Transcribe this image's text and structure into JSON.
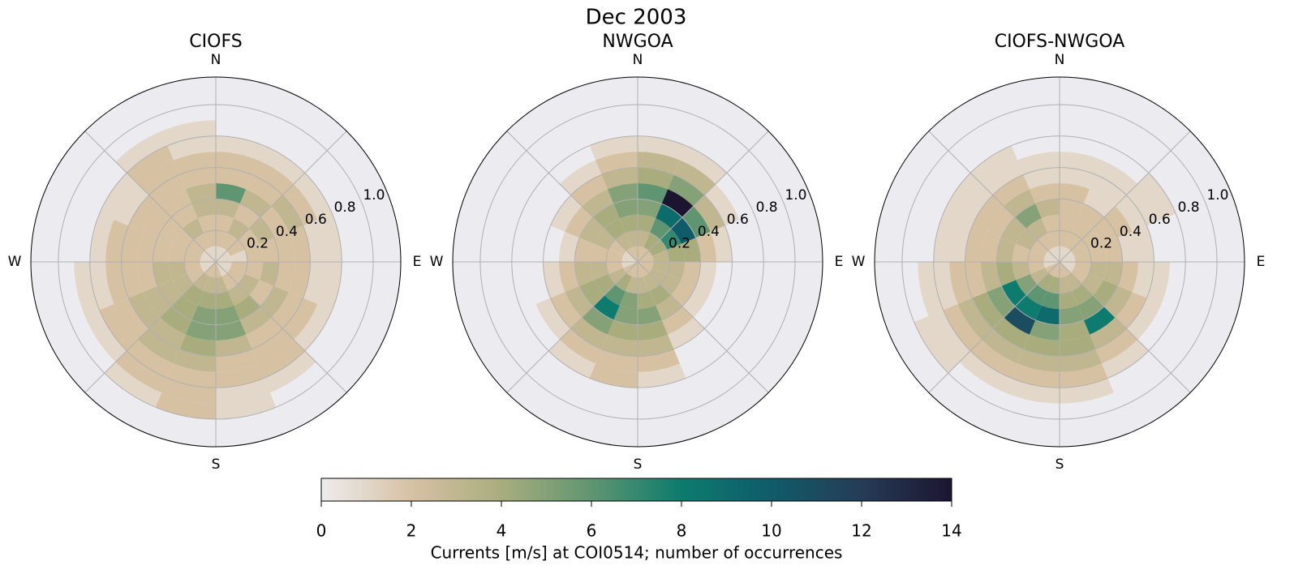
{
  "title": "Dec 2003",
  "polar": {
    "rlim": [
      0,
      1.175
    ],
    "rticks": [
      0.2,
      0.4,
      0.6,
      0.8,
      {
        "value": 1,
        "label": "1.0"
      }
    ],
    "r_bins": [
      0,
      0.1,
      0.2,
      0.3,
      0.4,
      0.5,
      0.6,
      0.7,
      0.8,
      0.9,
      1.0
    ],
    "theta_bins": [
      0,
      22.5,
      45,
      67.5,
      90,
      112.5,
      135,
      157.5,
      180,
      202.5,
      225,
      247.5,
      270,
      292.5,
      315,
      337.5,
      360
    ],
    "direction_labels": [
      "N",
      "E",
      "S",
      "W"
    ],
    "background": "#ebebf0",
    "grid": true
  },
  "chart_data": [
    {
      "type": "polar_hist2d",
      "title": "CIOFS",
      "counts": [
        [
          1,
          2,
          2,
          3,
          6,
          2,
          2,
          1,
          0,
          0
        ],
        [
          1,
          2,
          3,
          2,
          3,
          2,
          2,
          1,
          0,
          0
        ],
        [
          1,
          2,
          2,
          3,
          2,
          3,
          2,
          1,
          0,
          0
        ],
        [
          1,
          1,
          2,
          2,
          2,
          2,
          1,
          1,
          0,
          0
        ],
        [
          1,
          2,
          2,
          3,
          2,
          2,
          1,
          1,
          0,
          0
        ],
        [
          1,
          2,
          3,
          2,
          3,
          2,
          2,
          1,
          0,
          0
        ],
        [
          1,
          2,
          3,
          4,
          3,
          2,
          2,
          2,
          1,
          0
        ],
        [
          2,
          3,
          4,
          5,
          5,
          3,
          2,
          2,
          1,
          1
        ],
        [
          2,
          3,
          4,
          5,
          5,
          4,
          3,
          2,
          2,
          2
        ],
        [
          2,
          3,
          4,
          4,
          4,
          3,
          3,
          2,
          2,
          1
        ],
        [
          1,
          2,
          3,
          3,
          3,
          3,
          2,
          2,
          1,
          0
        ],
        [
          1,
          2,
          3,
          3,
          2,
          2,
          2,
          1,
          1,
          0
        ],
        [
          1,
          2,
          2,
          2,
          2,
          2,
          2,
          1,
          0,
          0
        ],
        [
          1,
          2,
          2,
          2,
          2,
          2,
          1,
          1,
          0,
          0
        ],
        [
          1,
          2,
          3,
          2,
          2,
          2,
          2,
          2,
          1,
          0
        ],
        [
          1,
          2,
          2,
          3,
          3,
          2,
          2,
          1,
          1,
          0
        ]
      ]
    },
    {
      "type": "polar_hist2d",
      "title": "NWGOA",
      "counts": [
        [
          2,
          3,
          4,
          5,
          6,
          4,
          3,
          1,
          0,
          0
        ],
        [
          2,
          4,
          6,
          9,
          14,
          5,
          3,
          1,
          0,
          0
        ],
        [
          2,
          4,
          7,
          10,
          6,
          3,
          1,
          0,
          0,
          0
        ],
        [
          2,
          3,
          4,
          4,
          2,
          1,
          0,
          0,
          0,
          0
        ],
        [
          2,
          3,
          3,
          2,
          1,
          0,
          0,
          0,
          0,
          0
        ],
        [
          2,
          3,
          3,
          2,
          1,
          0,
          0,
          0,
          0,
          0
        ],
        [
          2,
          3,
          4,
          3,
          2,
          1,
          0,
          0,
          0,
          0
        ],
        [
          2,
          3,
          4,
          5,
          4,
          3,
          2,
          1,
          0,
          0
        ],
        [
          2,
          3,
          5,
          5,
          4,
          3,
          2,
          2,
          0,
          0
        ],
        [
          2,
          4,
          6,
          8,
          5,
          3,
          2,
          1,
          0,
          0
        ],
        [
          2,
          3,
          4,
          4,
          3,
          2,
          1,
          0,
          0,
          0
        ],
        [
          1,
          2,
          3,
          3,
          2,
          1,
          0,
          0,
          0,
          0
        ],
        [
          1,
          2,
          2,
          2,
          1,
          0,
          0,
          0,
          0,
          0
        ],
        [
          1,
          2,
          3,
          3,
          2,
          1,
          0,
          0,
          0,
          0
        ],
        [
          2,
          3,
          4,
          4,
          3,
          2,
          1,
          0,
          0,
          0
        ],
        [
          2,
          3,
          4,
          5,
          5,
          3,
          2,
          1,
          0,
          0
        ]
      ]
    },
    {
      "type": "polar_hist2d",
      "title": "CIOFS-NWGOA",
      "counts": [
        [
          1,
          2,
          2,
          2,
          2,
          1,
          1,
          0,
          0,
          0
        ],
        [
          1,
          2,
          2,
          2,
          1,
          1,
          1,
          0,
          0,
          0
        ],
        [
          1,
          2,
          2,
          2,
          2,
          1,
          1,
          1,
          0,
          0
        ],
        [
          1,
          2,
          2,
          2,
          1,
          1,
          0,
          0,
          0,
          0
        ],
        [
          1,
          2,
          3,
          3,
          2,
          1,
          1,
          0,
          0,
          0
        ],
        [
          1,
          2,
          3,
          4,
          3,
          2,
          1,
          0,
          0,
          0
        ],
        [
          2,
          3,
          4,
          5,
          8,
          3,
          2,
          1,
          0,
          0
        ],
        [
          2,
          3,
          4,
          5,
          4,
          4,
          3,
          2,
          1,
          0
        ],
        [
          2,
          4,
          6,
          9,
          5,
          4,
          3,
          2,
          1,
          0
        ],
        [
          2,
          4,
          6,
          8,
          11,
          4,
          3,
          2,
          1,
          0
        ],
        [
          2,
          3,
          5,
          8,
          5,
          4,
          3,
          2,
          1,
          1
        ],
        [
          1,
          2,
          3,
          4,
          3,
          2,
          2,
          1,
          1,
          0
        ],
        [
          1,
          2,
          2,
          3,
          2,
          2,
          1,
          1,
          0,
          0
        ],
        [
          1,
          2,
          3,
          3,
          2,
          2,
          1,
          1,
          0,
          0
        ],
        [
          1,
          2,
          3,
          5,
          3,
          2,
          1,
          1,
          0,
          0
        ],
        [
          1,
          2,
          2,
          3,
          2,
          1,
          1,
          0,
          0,
          0
        ]
      ]
    }
  ],
  "colorbar": {
    "label": "Currents [m/s] at COI0514; number of occurrences",
    "clim": [
      0,
      14
    ],
    "ticks": [
      0,
      2,
      4,
      6,
      8,
      10,
      12,
      14
    ],
    "colormap": [
      "#eeeced",
      "#d6c1a3",
      "#a9ad7e",
      "#5f9571",
      "#0d7b6e",
      "#0f5b6a",
      "#263c56",
      "#1c1530"
    ]
  }
}
